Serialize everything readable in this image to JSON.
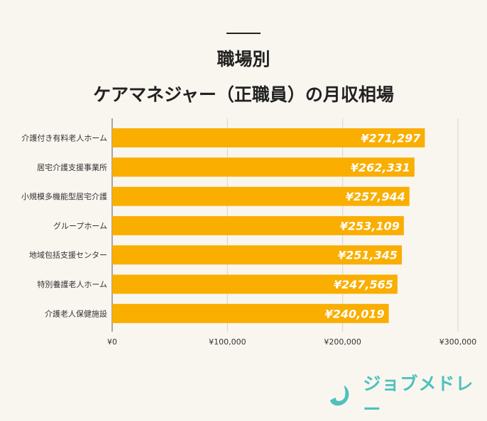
{
  "title_lines": [
    "職場別",
    "ケアマネジャー（正職員）の月収相場"
  ],
  "chart_data": {
    "type": "bar",
    "orientation": "horizontal",
    "title": "職場別 ケアマネジャー（正職員）の月収相場",
    "categories": [
      "介護付き有料老人ホーム",
      "居宅介護支援事業所",
      "小規模多機能型居宅介護",
      "グループホーム",
      "地域包括支援センター",
      "特別養護老人ホーム",
      "介護老人保健施設"
    ],
    "values": [
      271297,
      262331,
      257944,
      253109,
      251345,
      247565,
      240019
    ],
    "data_labels": [
      "¥271,297",
      "¥262,331",
      "¥257,944",
      "¥253,109",
      "¥251,345",
      "¥247,565",
      "¥240,019"
    ],
    "xlim": [
      0,
      300000
    ],
    "x_ticks": [
      0,
      100000,
      200000,
      300000
    ],
    "x_tick_labels": [
      "¥0",
      "¥100,000",
      "¥200,000",
      "¥300,000"
    ],
    "grid": "vertical",
    "bar_color": "#f9ae00",
    "label_color": "#ffffff"
  },
  "logo": {
    "text": "ジョブメドレー",
    "color": "#4fc1bd"
  }
}
